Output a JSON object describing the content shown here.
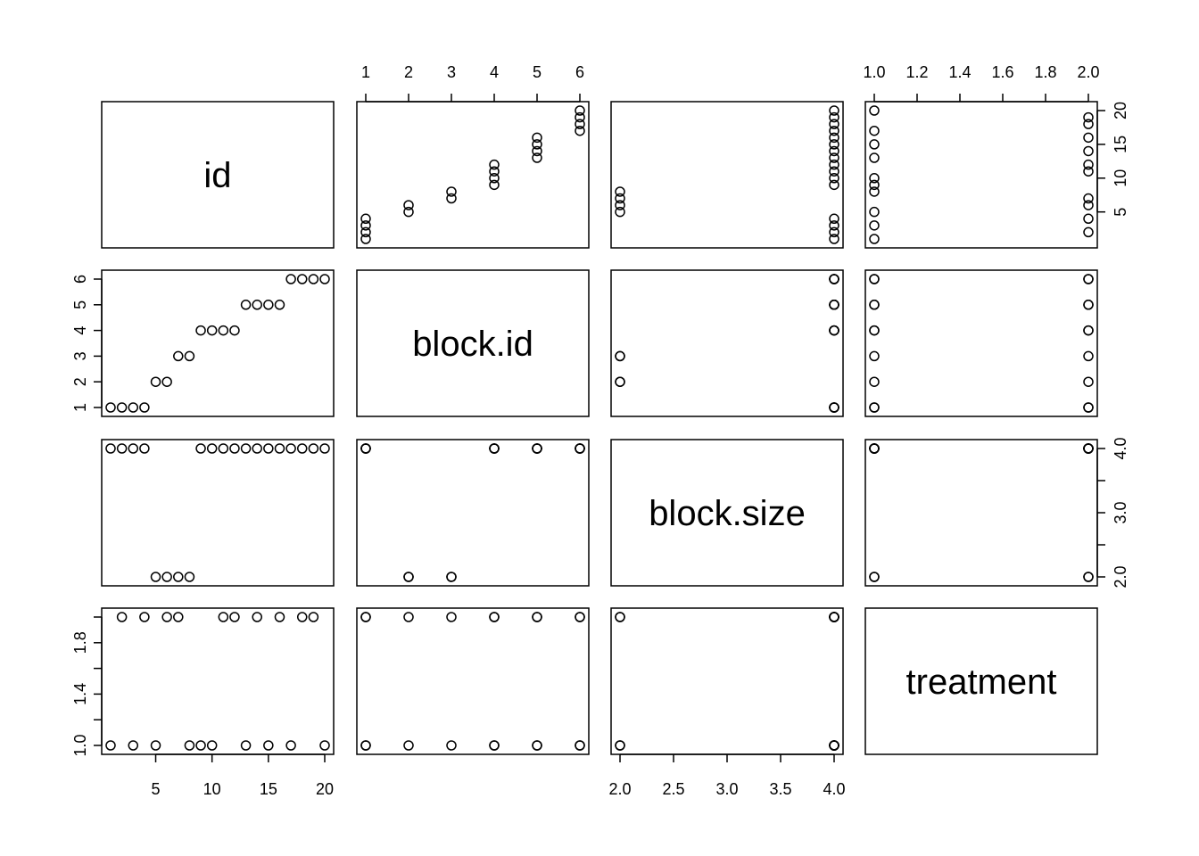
{
  "chart_data": {
    "type": "scatter",
    "title": "",
    "variables": [
      {
        "name": "id",
        "range": [
          1,
          20
        ],
        "ticks": [
          5,
          10,
          15,
          20
        ],
        "tick_labels": [
          "5",
          "10",
          "15",
          "20"
        ],
        "tick_side": "bottom"
      },
      {
        "name": "block.id",
        "range": [
          1,
          6
        ],
        "ticks": [
          1,
          2,
          3,
          4,
          5,
          6
        ],
        "tick_labels": [
          "1",
          "2",
          "3",
          "4",
          "5",
          "6"
        ],
        "tick_side": "top"
      },
      {
        "name": "block.size",
        "range": [
          2,
          4
        ],
        "ticks": [
          2.0,
          2.5,
          3.0,
          3.5,
          4.0
        ],
        "tick_labels": [
          "2.0",
          "2.5",
          "3.0",
          "3.5",
          "4.0"
        ],
        "tick_side": "bottom"
      },
      {
        "name": "treatment",
        "range": [
          1,
          2
        ],
        "ticks": [
          1.0,
          1.2,
          1.4,
          1.6,
          1.8,
          2.0
        ],
        "tick_labels": [
          "1.0",
          "1.2",
          "1.4",
          "1.6",
          "1.8",
          "2.0"
        ],
        "tick_side": "top"
      }
    ],
    "row_axes": [
      {
        "row": 0,
        "side": "right",
        "ticks": [
          5,
          10,
          15,
          20
        ],
        "tick_labels": [
          "5",
          "10",
          "15",
          "20"
        ]
      },
      {
        "row": 1,
        "side": "left",
        "ticks": [
          1,
          2,
          3,
          4,
          5,
          6
        ],
        "tick_labels": [
          "1",
          "2",
          "3",
          "4",
          "5",
          "6"
        ]
      },
      {
        "row": 2,
        "side": "right",
        "ticks": [
          2.0,
          2.5,
          3.0,
          3.5,
          4.0
        ],
        "tick_labels": [
          "2.0",
          "",
          "3.0",
          "",
          "4.0"
        ]
      },
      {
        "row": 3,
        "side": "left",
        "ticks": [
          1.0,
          1.2,
          1.4,
          1.6,
          1.8,
          2.0
        ],
        "tick_labels": [
          "1.0",
          "",
          "1.4",
          "",
          "1.8",
          ""
        ]
      }
    ],
    "observations": {
      "id": [
        1,
        2,
        3,
        4,
        5,
        6,
        7,
        8,
        9,
        10,
        11,
        12,
        13,
        14,
        15,
        16,
        17,
        18,
        19,
        20
      ],
      "block.id": [
        1,
        1,
        1,
        1,
        2,
        2,
        3,
        3,
        4,
        4,
        4,
        4,
        5,
        5,
        5,
        5,
        6,
        6,
        6,
        6
      ],
      "block.size": [
        4,
        4,
        4,
        4,
        2,
        2,
        2,
        2,
        4,
        4,
        4,
        4,
        4,
        4,
        4,
        4,
        4,
        4,
        4,
        4
      ],
      "treatment": [
        1,
        2,
        1,
        2,
        1,
        2,
        2,
        1,
        1,
        1,
        2,
        2,
        1,
        2,
        1,
        2,
        1,
        2,
        2,
        1
      ]
    },
    "grid": false,
    "marker": "open-circle"
  }
}
